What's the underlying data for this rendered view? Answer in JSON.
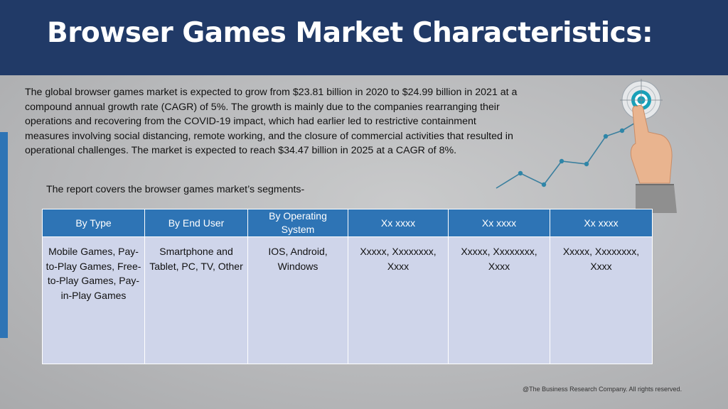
{
  "title": "Browser Games Market Characteristics:",
  "intro": "The global browser games market is expected to grow from $23.81 billion in 2020 to $24.99 billion in 2021 at a compound annual growth rate (CAGR) of 5%. The growth is mainly due to the companies rearranging their operations and recovering from the COVID-19 impact, which had earlier led to restrictive containment measures involving social distancing, remote working, and the closure of commercial activities that resulted in operational challenges. The market is expected to reach $34.47 billion in 2025 at a CAGR of 8%.",
  "segments_intro": "The report covers the browser games market’s segments-",
  "table": {
    "headers": [
      "By Type",
      "By End User",
      "By Operating System",
      "Xx xxxx",
      "Xx xxxx",
      "Xx xxxx"
    ],
    "cells": [
      "Mobile Games, Pay-to-Play Games, Free-to-Play Games, Pay-in-Play Games",
      "Smartphone and Tablet, PC, TV, Other",
      "IOS, Android, Windows",
      "Xxxxx, Xxxxxxxx, Xxxx",
      "Xxxxx, Xxxxxxxx, Xxxx",
      "Xxxxx, Xxxxxxxx, Xxxx"
    ]
  },
  "footer": "@The Business Research Company. All rights reserved.",
  "colors": {
    "header_bg": "#213a67",
    "table_header": "#2e74b5",
    "table_cell": "#cfd5ea",
    "accent_bar": "#2e74b5",
    "target_teal": "#18a0b8"
  },
  "icons": [
    "target-with-finger-icon",
    "growth-line-icon"
  ]
}
